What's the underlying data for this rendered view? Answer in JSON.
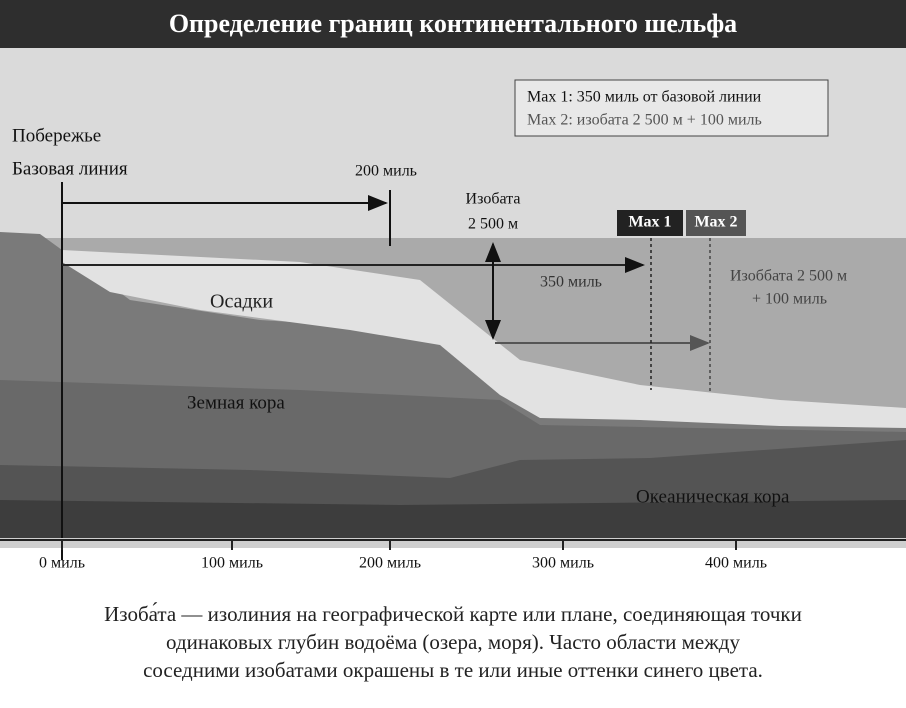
{
  "title": "Определение границ континентального шельфа",
  "legend": {
    "max1": "Max 1: 350 миль от базовой линии",
    "max2": "Max 2: изобата 2 500 м + 100 миль"
  },
  "labels": {
    "coast": "Побережье",
    "baseline": "Базовая линия",
    "miles200": "200 миль",
    "isobath": [
      "Изобата",
      "2 500 м"
    ],
    "max1": "Max 1",
    "max2": "Max 2",
    "miles350": "350 миль",
    "isobath100": [
      "Изоббата 2 500 м",
      "+ 100 миль"
    ],
    "sediments": "Осадки",
    "crust": "Земная кора",
    "oceanic": "Океаническая кора"
  },
  "axis": [
    "0 миль",
    "100 миль",
    "200 миль",
    "300 миль",
    "400 миль"
  ],
  "caption": [
    "Изоба́та — изолиния на географической карте или плане, соединяющая точки",
    "одинаковых глубин водоёма (озера, моря). Часто области между",
    "соседними изобатами окрашены в те или иные оттенки синего цвета."
  ]
}
